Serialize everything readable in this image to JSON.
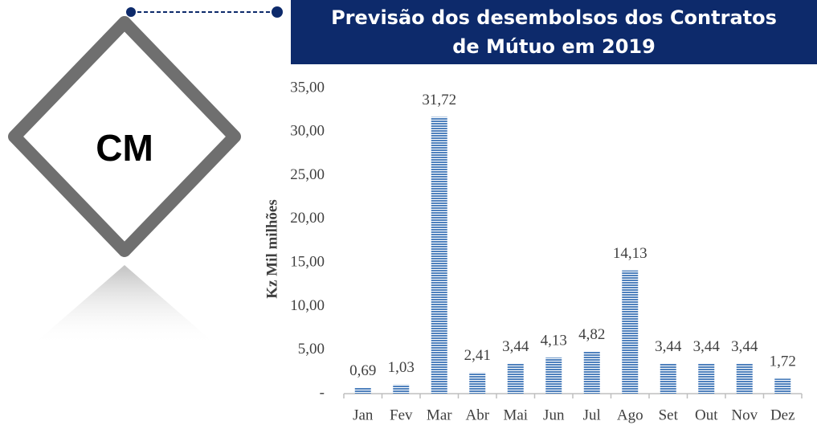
{
  "badge": "CM",
  "chart_data": {
    "type": "bar",
    "title": "Previsão dos desembolsos dos Contratos de Mútuo em 2019",
    "y_label": "Kz Mil milhões",
    "categories": [
      "Jan",
      "Fev",
      "Mar",
      "Abr",
      "Mai",
      "Jun",
      "Jul",
      "Ago",
      "Set",
      "Out",
      "Nov",
      "Dez"
    ],
    "values": [
      0.69,
      1.03,
      31.72,
      2.41,
      3.44,
      4.13,
      4.82,
      14.13,
      3.44,
      3.44,
      3.44,
      1.72
    ],
    "value_labels": [
      "0,69",
      "1,03",
      "31,72",
      "2,41",
      "3,44",
      "4,13",
      "4,82",
      "14,13",
      "3,44",
      "3,44",
      "3,44",
      "1,72"
    ],
    "color": "#4f81bd",
    "ylim": [
      0,
      35
    ],
    "yticks": [
      {
        "value": 0,
        "label": "-"
      },
      {
        "value": 5,
        "label": "5,00"
      },
      {
        "value": 10,
        "label": "10,00"
      },
      {
        "value": 15,
        "label": "15,00"
      },
      {
        "value": 20,
        "label": "20,00"
      },
      {
        "value": 25,
        "label": "25,00"
      },
      {
        "value": 30,
        "label": "30,00"
      },
      {
        "value": 35,
        "label": "35,00"
      }
    ],
    "grid": false
  }
}
